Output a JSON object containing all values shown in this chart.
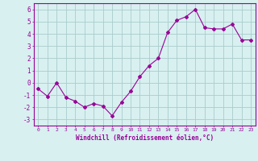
{
  "x": [
    0,
    1,
    2,
    3,
    4,
    5,
    6,
    7,
    8,
    9,
    10,
    11,
    12,
    13,
    14,
    15,
    16,
    17,
    18,
    19,
    20,
    21,
    22,
    23
  ],
  "y": [
    -0.5,
    -1.1,
    0.0,
    -1.2,
    -1.5,
    -2.0,
    -1.7,
    -1.9,
    -2.7,
    -1.6,
    -0.7,
    0.5,
    1.4,
    2.0,
    4.1,
    5.1,
    5.4,
    6.0,
    4.5,
    4.4,
    4.4,
    4.8,
    3.5,
    3.5
  ],
  "xlim": [
    -0.5,
    23.5
  ],
  "ylim": [
    -3.5,
    6.5
  ],
  "yticks": [
    -3,
    -2,
    -1,
    0,
    1,
    2,
    3,
    4,
    5,
    6
  ],
  "xticks": [
    0,
    1,
    2,
    3,
    4,
    5,
    6,
    7,
    8,
    9,
    10,
    11,
    12,
    13,
    14,
    15,
    16,
    17,
    18,
    19,
    20,
    21,
    22,
    23
  ],
  "xlabel": "Windchill (Refroidissement éolien,°C)",
  "line_color": "#990099",
  "marker": "D",
  "marker_size": 2,
  "bg_color": "#d8f0f0",
  "grid_color": "#aacccc"
}
